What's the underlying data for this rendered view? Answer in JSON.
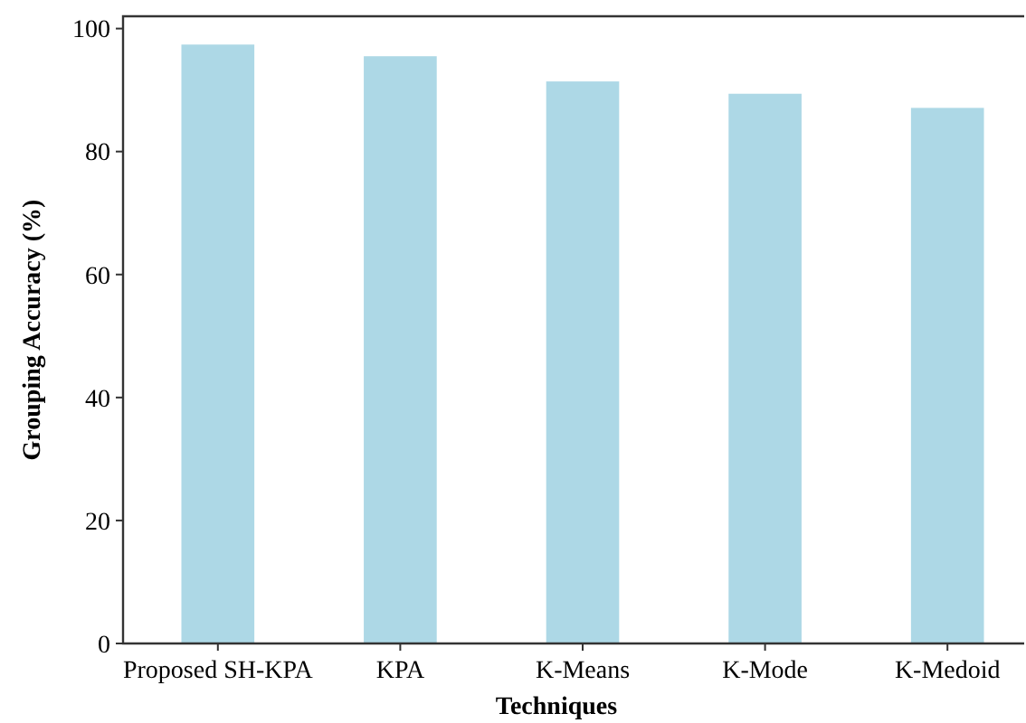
{
  "chart_data": {
    "type": "bar",
    "xlabel": "Techniques",
    "ylabel": "Grouping Accuracy (%)",
    "categories": [
      "Proposed SH-KPA",
      "KPA",
      "K-Means",
      "K-Mode",
      "K-Medoid"
    ],
    "values": [
      97.4,
      95.5,
      91.4,
      89.4,
      87.1
    ],
    "color": "#add8e6",
    "ylim": [
      0,
      102
    ],
    "yticks": [
      0,
      20,
      40,
      60,
      80,
      100
    ],
    "grid": false
  }
}
